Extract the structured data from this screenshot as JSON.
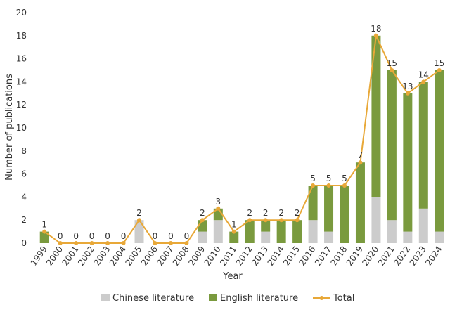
{
  "chart_data": {
    "type": "bar",
    "stacked": true,
    "categories": [
      "1999",
      "2000",
      "2001",
      "2002",
      "2003",
      "2004",
      "2005",
      "2006",
      "2007",
      "2008",
      "2009",
      "2010",
      "2011",
      "2012",
      "2013",
      "2014",
      "2015",
      "2016",
      "2017",
      "2018",
      "2019",
      "2020",
      "2021",
      "2022",
      "2023",
      "2024"
    ],
    "series": [
      {
        "name": "Chinese literature",
        "color": "#cccccc",
        "values": [
          0,
          0,
          0,
          0,
          0,
          0,
          2,
          0,
          0,
          0,
          1,
          2,
          0,
          0,
          1,
          0,
          0,
          2,
          1,
          0,
          0,
          4,
          2,
          1,
          3,
          1
        ]
      },
      {
        "name": "English literature",
        "color": "#7a9a3e",
        "values": [
          1,
          0,
          0,
          0,
          0,
          0,
          0,
          0,
          0,
          0,
          1,
          1,
          1,
          2,
          1,
          2,
          2,
          3,
          4,
          5,
          7,
          14,
          13,
          12,
          11,
          14
        ]
      },
      {
        "name": "Total",
        "type": "line",
        "color": "#e8a838",
        "values": [
          1,
          0,
          0,
          0,
          0,
          0,
          2,
          0,
          0,
          0,
          2,
          3,
          1,
          2,
          2,
          2,
          2,
          5,
          5,
          5,
          7,
          18,
          15,
          13,
          14,
          15
        ]
      }
    ],
    "xlabel": "Year",
    "ylabel": "Number of publications",
    "ylim": [
      0,
      20
    ],
    "yticks": [
      0,
      2,
      4,
      6,
      8,
      10,
      12,
      14,
      16,
      18,
      20
    ],
    "grid": false,
    "legend": "bottom"
  }
}
